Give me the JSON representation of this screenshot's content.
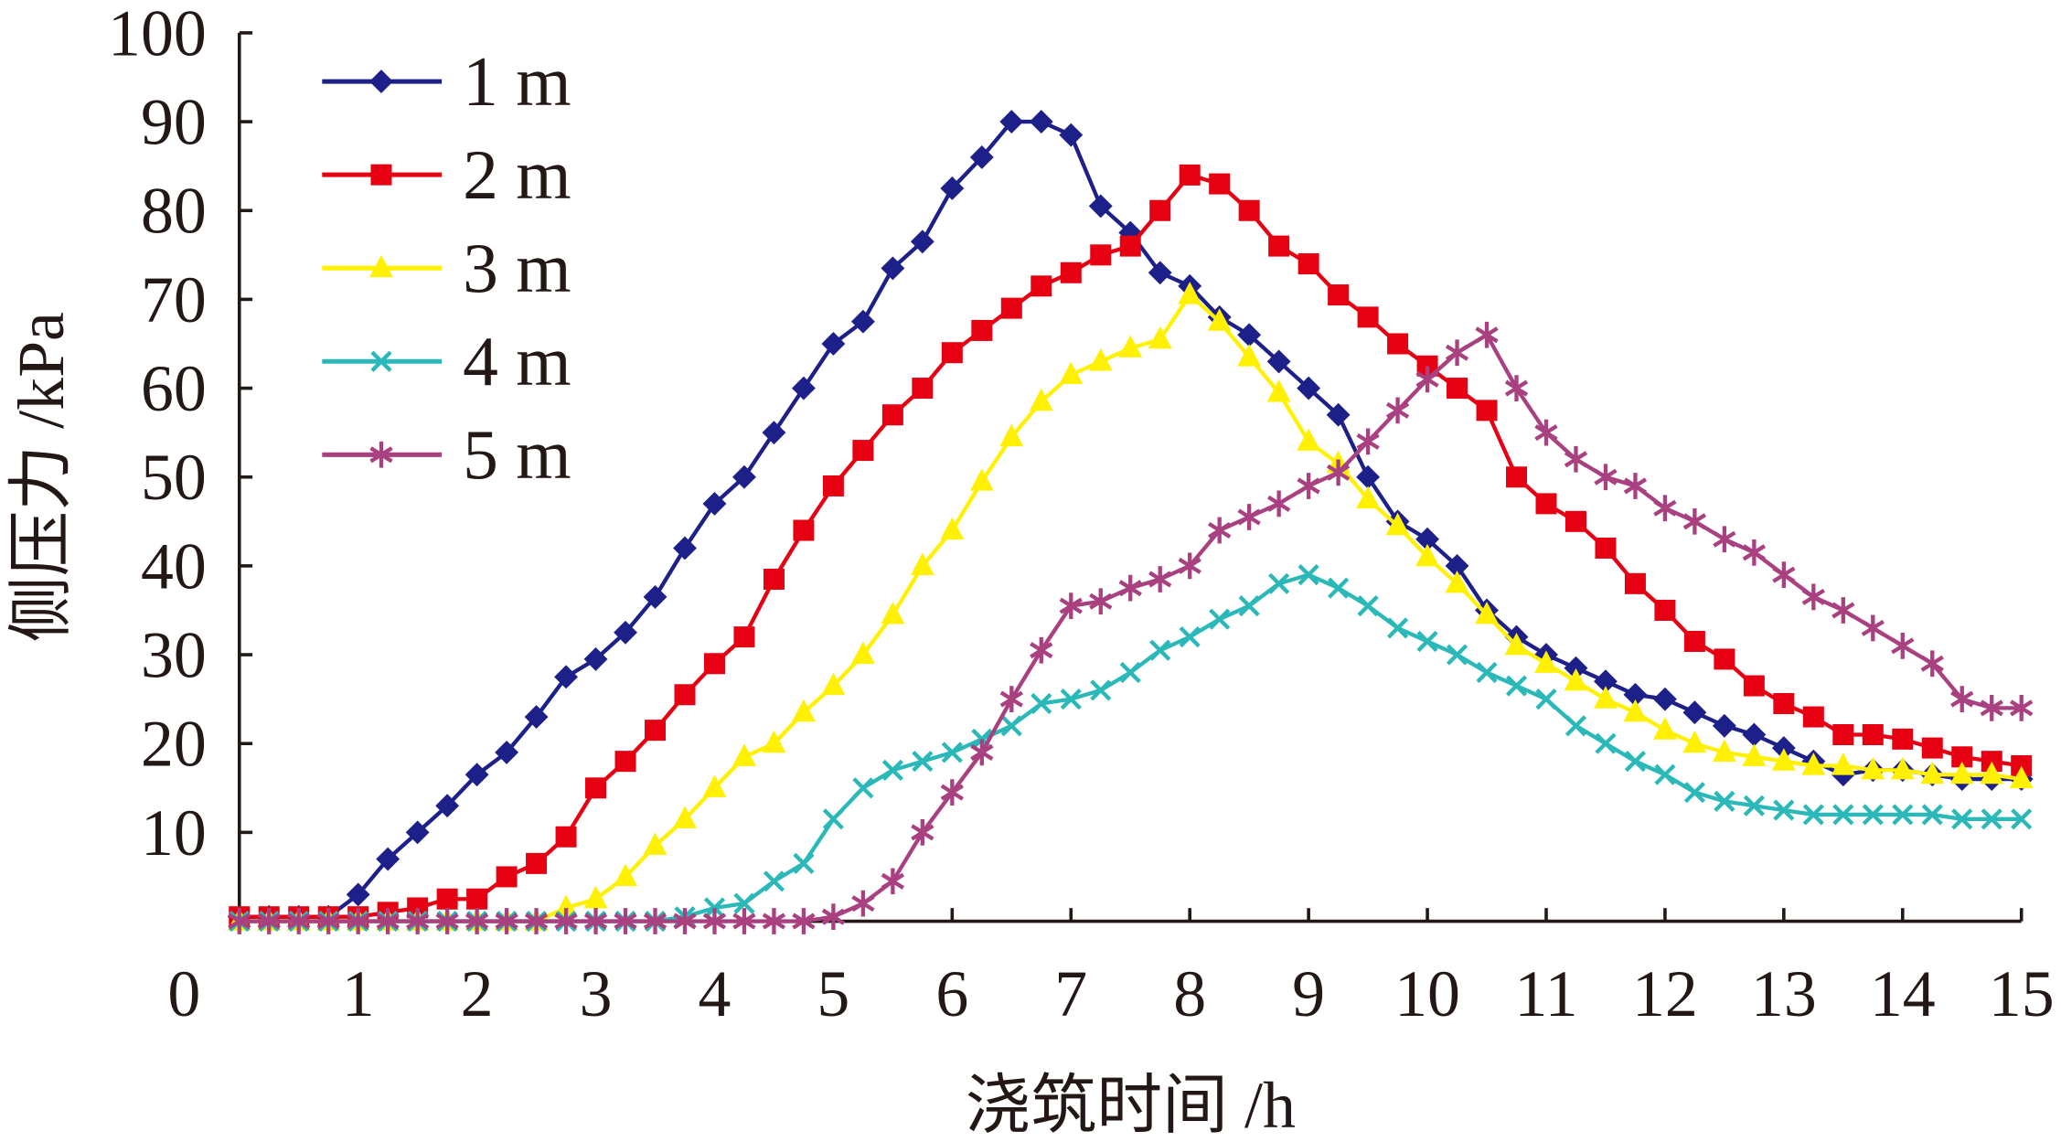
{
  "chart_data": {
    "type": "line",
    "title": "",
    "xlabel": "浇筑时间 /h",
    "ylabel": "侧压力 /kPa",
    "xlim": [
      0,
      15
    ],
    "ylim": [
      0,
      100
    ],
    "x_ticks": [
      "0",
      "1",
      "2",
      "3",
      "4",
      "5",
      "6",
      "7",
      "8",
      "9",
      "10",
      "11",
      "12",
      "13",
      "14",
      "15"
    ],
    "y_ticks": [
      "10",
      "20",
      "30",
      "40",
      "50",
      "60",
      "70",
      "80",
      "90",
      "100"
    ],
    "grid": false,
    "legend_position": "top-left",
    "x_step": 0.25,
    "series": [
      {
        "name": "1 m",
        "color": "#1d2088",
        "marker": "diamond",
        "values": [
          0.5,
          0.5,
          0.5,
          0.5,
          3,
          7,
          10,
          13,
          16.5,
          19,
          23,
          27.5,
          29.5,
          32.5,
          36.5,
          42,
          47,
          50,
          55,
          60,
          65,
          67.5,
          73.5,
          76.5,
          82.5,
          86,
          90,
          90,
          88.5,
          80.5,
          77.5,
          73,
          71.5,
          68,
          66,
          63,
          60,
          57,
          50,
          45,
          43,
          40,
          35,
          32,
          30,
          28.5,
          27,
          25.5,
          25,
          23.5,
          22,
          21,
          19.5,
          18,
          16.5,
          17,
          17,
          16.5,
          16,
          16,
          16
        ]
      },
      {
        "name": "2 m",
        "color": "#e60012",
        "marker": "square",
        "values": [
          0.5,
          0.5,
          0.5,
          0.5,
          0.5,
          1,
          1.5,
          2.5,
          2.5,
          5,
          6.5,
          9.5,
          15,
          18,
          21.5,
          25.5,
          29,
          32,
          38.5,
          44,
          49,
          53,
          57,
          60,
          64,
          66.5,
          69,
          71.5,
          73,
          75,
          76,
          80,
          84,
          83,
          80,
          76,
          74,
          70.5,
          68,
          65,
          62.5,
          60,
          57.5,
          50,
          47,
          45,
          42,
          38,
          35,
          31.5,
          29.5,
          26.5,
          24.5,
          23,
          21,
          21,
          20.5,
          19.5,
          18.5,
          18,
          17.5
        ]
      },
      {
        "name": "3 m",
        "color": "#fff100",
        "marker": "triangle",
        "values": [
          0,
          0,
          0,
          0,
          0,
          0,
          0,
          0,
          0,
          0,
          0,
          1.5,
          2.5,
          5,
          8.5,
          11.5,
          15,
          18.5,
          20,
          23.5,
          26.5,
          30,
          34.5,
          40,
          44,
          49.5,
          54.5,
          58.5,
          61.5,
          63,
          64.5,
          65.5,
          70.5,
          67.5,
          63.5,
          59.5,
          54,
          51.5,
          47.5,
          44.5,
          41,
          38,
          34.5,
          31,
          29,
          27,
          25,
          23.5,
          21.5,
          20,
          19,
          18.5,
          18,
          17.5,
          17.5,
          17,
          17,
          16.5,
          16.5,
          16.5,
          16
        ]
      },
      {
        "name": "4 m",
        "color": "#2ab8b8",
        "marker": "x",
        "values": [
          0,
          0,
          0,
          0,
          0,
          0,
          0,
          0,
          0,
          0,
          0,
          0,
          0,
          0,
          0,
          0.5,
          1.5,
          2,
          4.5,
          6.5,
          11.5,
          15,
          17,
          18,
          19,
          20.5,
          22,
          24.5,
          25,
          26,
          28,
          30.5,
          32,
          34,
          35.5,
          38,
          39,
          37.5,
          35.5,
          33,
          31.5,
          30,
          28,
          26.5,
          25,
          22,
          20,
          18,
          16.5,
          14.5,
          13.5,
          13,
          12.5,
          12,
          12,
          12,
          12,
          12,
          11.5,
          11.5,
          11.5
        ]
      },
      {
        "name": "5 m",
        "color": "#a9407f",
        "marker": "asterisk",
        "values": [
          0,
          0,
          0,
          0,
          0,
          0,
          0,
          0,
          0,
          0,
          0,
          0,
          0,
          0,
          0,
          0,
          0,
          0,
          0,
          0,
          0.5,
          2,
          4.5,
          10,
          14.5,
          19,
          25,
          30.5,
          35.5,
          36,
          37.5,
          38.5,
          40,
          44,
          45.5,
          47,
          49,
          50.5,
          54,
          57.5,
          61,
          64,
          66,
          60,
          55,
          52,
          50,
          49,
          46.5,
          45,
          43,
          41.5,
          39,
          36.5,
          35,
          33,
          31,
          29,
          25,
          24,
          24
        ]
      }
    ]
  }
}
